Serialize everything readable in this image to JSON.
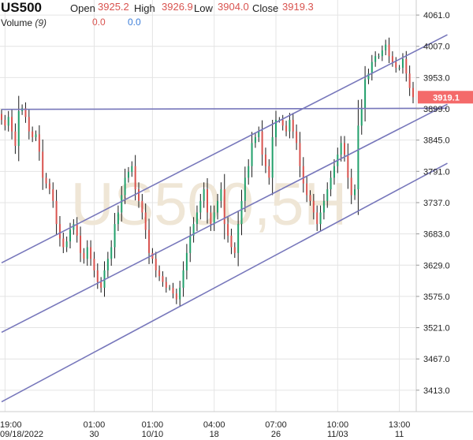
{
  "header": {
    "symbol": "US500",
    "open_label": "Open",
    "open_value": "3925.2",
    "high_label": "High",
    "high_value": "3926.9",
    "low_label": "Low",
    "low_value": "3904.0",
    "close_label": "Close",
    "close_value": "3919.3",
    "volume_label": "Volume",
    "volume_period": "(9)",
    "volume_value_1": "0.0",
    "volume_value_2": "0.0"
  },
  "chart_data": {
    "type": "candlestick",
    "watermark": "US500,5H",
    "last_price_label": "3919.1",
    "ylim": [
      3376,
      4087
    ],
    "y_ticks": [
      "4061.0",
      "4007.0",
      "3953.0",
      "3899.0",
      "3845.0",
      "3791.0",
      "3737.0",
      "3683.0",
      "3629.0",
      "3575.0",
      "3521.0",
      "3467.0",
      "3413.0"
    ],
    "x_ticks": [
      {
        "time": "19:00",
        "date": "09/18/2022",
        "bar": 1
      },
      {
        "time": "01:00",
        "date": "30",
        "bar": 27
      },
      {
        "time": "01:00",
        "date": "10/10",
        "bar": 44
      },
      {
        "time": "04:00",
        "date": "18",
        "bar": 62
      },
      {
        "time": "07:00",
        "date": "26",
        "bar": 80
      },
      {
        "time": "10:00",
        "date": "11/03",
        "bar": 98
      },
      {
        "time": "13:00",
        "date": "11",
        "bar": 116
      }
    ],
    "ohlc_close": [
      3880,
      3870,
      3885,
      3860,
      3835,
      3895,
      3900,
      3885,
      3860,
      3850,
      3855,
      3825,
      3780,
      3770,
      3760,
      3740,
      3700,
      3675,
      3660,
      3670,
      3690,
      3700,
      3680,
      3650,
      3640,
      3660,
      3640,
      3620,
      3600,
      3590,
      3620,
      3640,
      3660,
      3700,
      3720,
      3750,
      3780,
      3790,
      3800,
      3760,
      3740,
      3720,
      3690,
      3650,
      3640,
      3620,
      3610,
      3600,
      3590,
      3590,
      3580,
      3570,
      3590,
      3620,
      3650,
      3680,
      3700,
      3720,
      3740,
      3760,
      3720,
      3700,
      3720,
      3740,
      3760,
      3700,
      3680,
      3660,
      3650,
      3700,
      3740,
      3780,
      3800,
      3840,
      3850,
      3860,
      3820,
      3800,
      3780,
      3850,
      3880,
      3880,
      3870,
      3860,
      3880,
      3860,
      3840,
      3800,
      3770,
      3750,
      3740,
      3720,
      3700,
      3720,
      3740,
      3760,
      3780,
      3800,
      3820,
      3840,
      3820,
      3780,
      3750,
      3760,
      3870,
      3900,
      3950,
      3960,
      3980,
      3990,
      3990,
      4000,
      4010,
      3990,
      3980,
      3970,
      3970,
      3985,
      3960,
      3935,
      3919.1
    ],
    "trend_lines": [
      {
        "name": "upper-channel",
        "points": [
          [
            0,
            3633
          ],
          [
            130,
            4027
          ]
        ]
      },
      {
        "name": "middle-channel",
        "points": [
          [
            0,
            3513
          ],
          [
            130,
            3907
          ]
        ]
      },
      {
        "name": "lower-channel",
        "points": [
          [
            0,
            3393
          ],
          [
            130,
            3805
          ]
        ]
      },
      {
        "name": "horizontal-resistance",
        "points": [
          [
            0,
            3898
          ],
          [
            130,
            3900
          ]
        ]
      }
    ],
    "colors": {
      "up": "#22a06b",
      "down": "#d9534f",
      "wick": "#1a1a1a",
      "trend": "#7777bb",
      "price_tag": "#f46a6a",
      "grid": "#e4e4e4"
    }
  }
}
